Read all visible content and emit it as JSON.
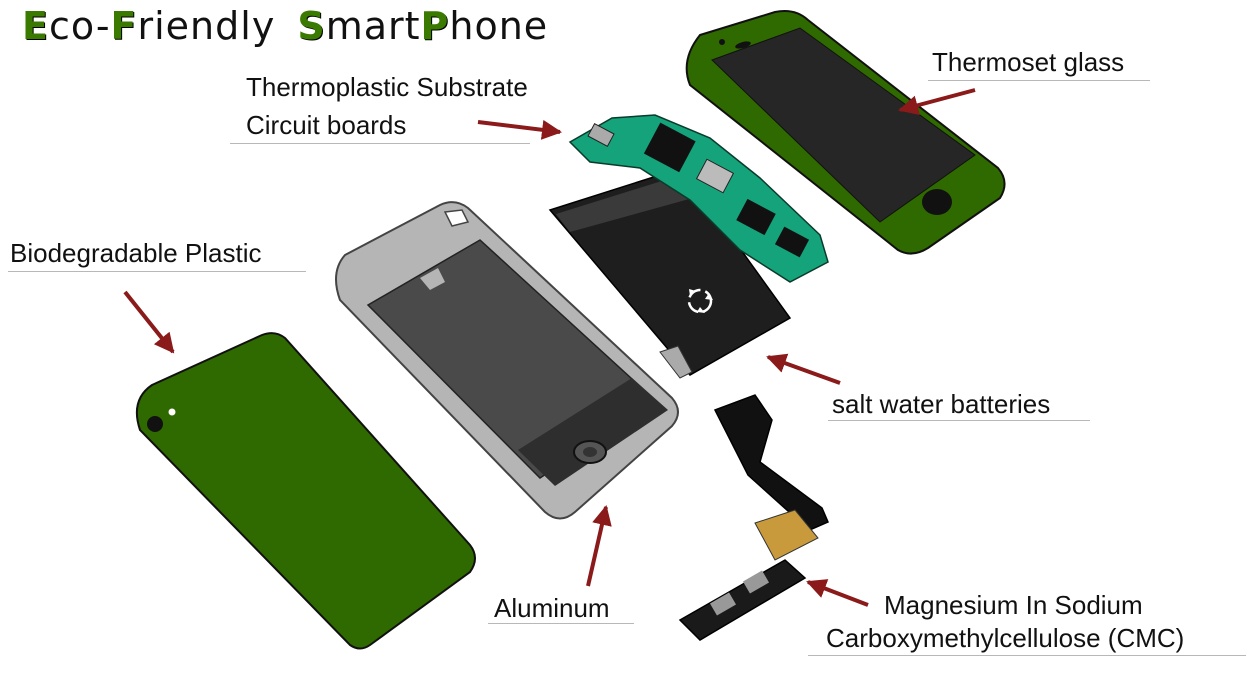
{
  "title": {
    "parts": [
      {
        "cap": "E",
        "rest": "co-"
      },
      {
        "cap": "F",
        "rest": "riendly"
      },
      {
        "cap": "S",
        "rest": "mart"
      },
      {
        "cap": "P",
        "rest": "hone"
      }
    ]
  },
  "labels": {
    "circuit_line1": "Thermoplastic Substrate",
    "circuit_line2": "Circuit boards",
    "glass": "Thermoset glass",
    "plastic": "Biodegradable Plastic",
    "battery": "salt water batteries",
    "aluminum": "Aluminum",
    "cmc_line1": "Magnesium In Sodium",
    "cmc_line2": "Carboxymethylcellulose (CMC)"
  },
  "colors": {
    "green": "#2f6a00",
    "arrow": "#8b1a1a",
    "frame": "#b5b5b5",
    "dark": "#1e1e1e",
    "circuit": "#14a37a"
  },
  "icons": {
    "recycle": "recycle-icon"
  }
}
